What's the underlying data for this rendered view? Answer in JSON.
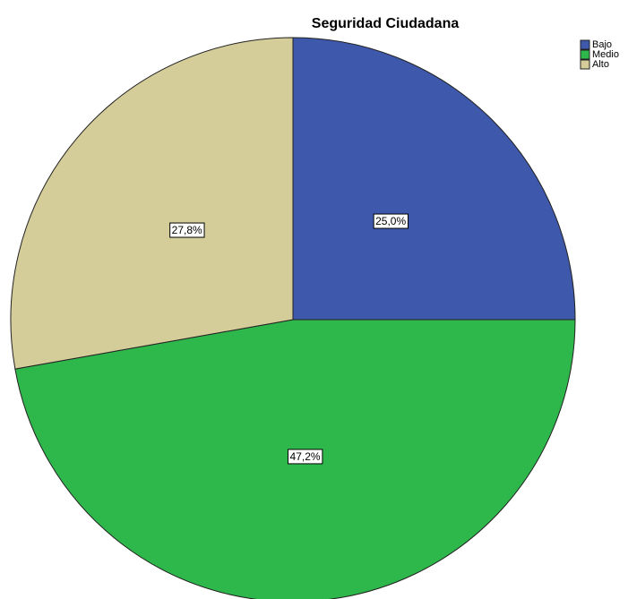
{
  "chart_data": {
    "type": "pie",
    "title": "Seguridad Ciudadana",
    "categories": [
      "Bajo",
      "Medio",
      "Alto"
    ],
    "values": [
      25.0,
      47.2,
      27.8
    ],
    "value_labels": [
      "25,0%",
      "47,2%",
      "27,8%"
    ],
    "colors": [
      "#3e58ac",
      "#2eb84b",
      "#d4cc99"
    ]
  }
}
